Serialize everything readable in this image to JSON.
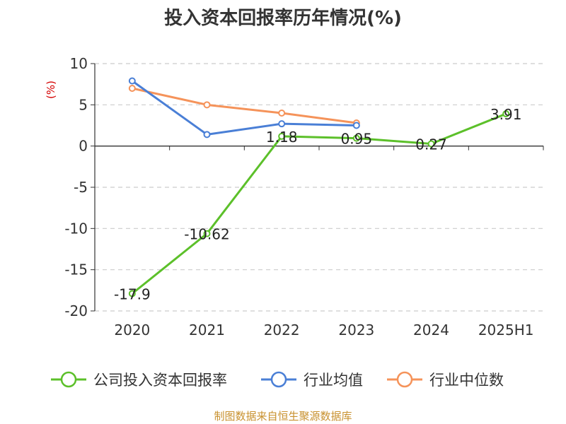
{
  "chart_data": {
    "type": "line",
    "title": "投入资本回报率历年情况(%)",
    "ylabel": "(%)",
    "categories": [
      "2020",
      "2021",
      "2022",
      "2023",
      "2024",
      "2025H1"
    ],
    "ylim": [
      -20,
      10
    ],
    "yticks": [
      10,
      5,
      0,
      -5,
      -10,
      -15,
      -20
    ],
    "grid": true,
    "legend_position": "bottom",
    "series": [
      {
        "name": "公司投入资本回报率",
        "color": "#5cc02a",
        "values": [
          -17.9,
          -10.62,
          1.18,
          0.95,
          0.27,
          3.91
        ],
        "labels": [
          "-17.9",
          "-10.62",
          "1.18",
          "0.95",
          "0.27",
          "3.91"
        ]
      },
      {
        "name": "行业均值",
        "color": "#4a7fd6",
        "values": [
          7.9,
          1.4,
          2.7,
          2.5,
          null,
          null
        ]
      },
      {
        "name": "行业中位数",
        "color": "#f5935a",
        "values": [
          7.0,
          5.0,
          4.0,
          2.8,
          null,
          null
        ]
      }
    ]
  },
  "source": "制图数据来自恒生聚源数据库"
}
